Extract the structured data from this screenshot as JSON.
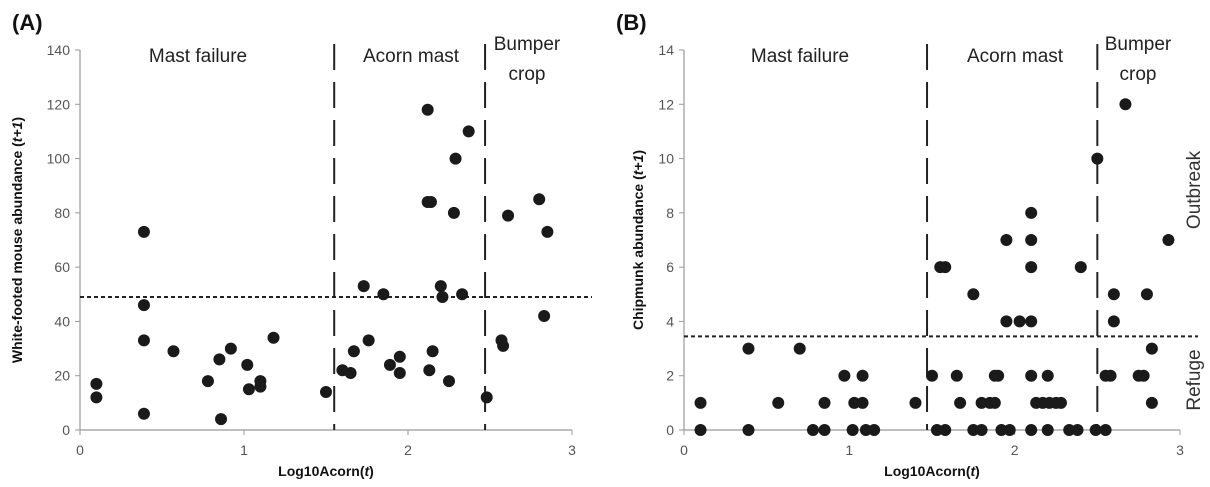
{
  "chart_data": [
    {
      "type": "scatter",
      "panel_label": "(A)",
      "xlabel": "Log10Acorn(t)",
      "ylabel": "White-footed mouse abundance (t+1)",
      "xlim": [
        0,
        3
      ],
      "ylim": [
        0,
        140
      ],
      "x_ticks": [
        "0",
        "1",
        "2",
        "3"
      ],
      "y_ticks": [
        "0",
        "20",
        "40",
        "60",
        "80",
        "100",
        "120",
        "140"
      ],
      "threshold": 49,
      "dividers": [
        1.55,
        2.47
      ],
      "regions": [
        "Mast failure",
        "Acorn mast",
        "Bumper crop"
      ],
      "points": [
        [
          0.1,
          17
        ],
        [
          0.1,
          12
        ],
        [
          0.39,
          73
        ],
        [
          0.39,
          46
        ],
        [
          0.39,
          33
        ],
        [
          0.39,
          6
        ],
        [
          0.57,
          29
        ],
        [
          0.78,
          18
        ],
        [
          0.85,
          26
        ],
        [
          0.86,
          4
        ],
        [
          0.92,
          30
        ],
        [
          1.02,
          24
        ],
        [
          1.03,
          15
        ],
        [
          1.1,
          18
        ],
        [
          1.1,
          16
        ],
        [
          1.18,
          34
        ],
        [
          1.5,
          14
        ],
        [
          1.6,
          22
        ],
        [
          1.65,
          21
        ],
        [
          1.67,
          29
        ],
        [
          1.73,
          53
        ],
        [
          1.76,
          33
        ],
        [
          1.85,
          50
        ],
        [
          1.89,
          24
        ],
        [
          1.95,
          27
        ],
        [
          1.95,
          21
        ],
        [
          2.12,
          118
        ],
        [
          2.12,
          84
        ],
        [
          2.14,
          84
        ],
        [
          2.15,
          29
        ],
        [
          2.13,
          22
        ],
        [
          2.2,
          53
        ],
        [
          2.21,
          49
        ],
        [
          2.25,
          18
        ],
        [
          2.28,
          80
        ],
        [
          2.29,
          100
        ],
        [
          2.33,
          50
        ],
        [
          2.37,
          110
        ],
        [
          2.48,
          12
        ],
        [
          2.57,
          33
        ],
        [
          2.58,
          31
        ],
        [
          2.61,
          79
        ],
        [
          2.8,
          85
        ],
        [
          2.83,
          42
        ],
        [
          2.85,
          73
        ]
      ]
    },
    {
      "type": "scatter",
      "panel_label": "(B)",
      "xlabel": "Log10Acorn(t)",
      "ylabel": "Chipmunk abundance (t+1)",
      "xlim": [
        0,
        3
      ],
      "ylim": [
        0,
        14
      ],
      "x_ticks": [
        "0",
        "1",
        "2",
        "3"
      ],
      "y_ticks": [
        "0",
        "2",
        "4",
        "6",
        "8",
        "10",
        "12",
        "14"
      ],
      "threshold": 3.45,
      "dividers": [
        1.47,
        2.5
      ],
      "regions": [
        "Mast failure",
        "Acorn mast",
        "Bumper crop"
      ],
      "side_labels": [
        "Outbreak",
        "Refuge"
      ],
      "points": [
        [
          0.1,
          1
        ],
        [
          0.1,
          0
        ],
        [
          0.39,
          3
        ],
        [
          0.39,
          0
        ],
        [
          0.57,
          1
        ],
        [
          0.7,
          3
        ],
        [
          0.78,
          0
        ],
        [
          0.85,
          0
        ],
        [
          0.85,
          1
        ],
        [
          0.97,
          2
        ],
        [
          1.02,
          0
        ],
        [
          1.03,
          1
        ],
        [
          1.08,
          1
        ],
        [
          1.08,
          2
        ],
        [
          1.1,
          0
        ],
        [
          1.15,
          0
        ],
        [
          1.4,
          1
        ],
        [
          1.5,
          2
        ],
        [
          1.55,
          6
        ],
        [
          1.53,
          0
        ],
        [
          1.58,
          6
        ],
        [
          1.58,
          0
        ],
        [
          1.65,
          2
        ],
        [
          1.67,
          1
        ],
        [
          1.75,
          5
        ],
        [
          1.75,
          0
        ],
        [
          1.8,
          0
        ],
        [
          1.8,
          1
        ],
        [
          1.85,
          1
        ],
        [
          1.88,
          1
        ],
        [
          1.88,
          2
        ],
        [
          1.9,
          2
        ],
        [
          1.92,
          0
        ],
        [
          1.95,
          7
        ],
        [
          1.95,
          4
        ],
        [
          1.97,
          0
        ],
        [
          2.03,
          4
        ],
        [
          2.1,
          8
        ],
        [
          2.1,
          7
        ],
        [
          2.1,
          6
        ],
        [
          2.1,
          4
        ],
        [
          2.1,
          2
        ],
        [
          2.1,
          0
        ],
        [
          2.13,
          1
        ],
        [
          2.17,
          1
        ],
        [
          2.2,
          2
        ],
        [
          2.2,
          0
        ],
        [
          2.21,
          1
        ],
        [
          2.25,
          1
        ],
        [
          2.28,
          1
        ],
        [
          2.33,
          0
        ],
        [
          2.38,
          0
        ],
        [
          2.4,
          6
        ],
        [
          2.49,
          0
        ],
        [
          2.5,
          10
        ],
        [
          2.55,
          2
        ],
        [
          2.55,
          0
        ],
        [
          2.58,
          2
        ],
        [
          2.6,
          5
        ],
        [
          2.6,
          4
        ],
        [
          2.67,
          12
        ],
        [
          2.75,
          2
        ],
        [
          2.78,
          2
        ],
        [
          2.8,
          5
        ],
        [
          2.83,
          3
        ],
        [
          2.83,
          1
        ],
        [
          2.93,
          7
        ]
      ]
    }
  ]
}
